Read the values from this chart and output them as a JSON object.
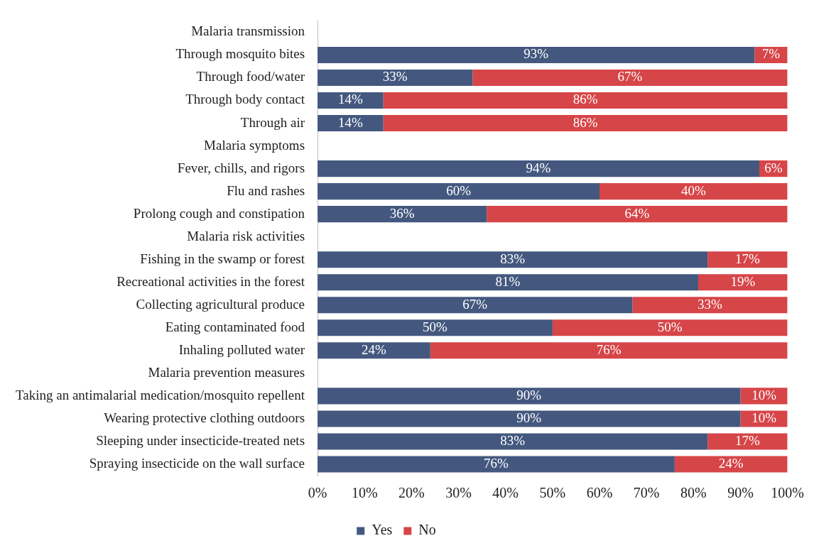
{
  "chart_data": {
    "type": "bar",
    "orientation": "horizontal",
    "stacked": true,
    "categories": [
      "Malaria transmission",
      "Through mosquito bites",
      "Through food/water",
      "Through body contact",
      "Through air",
      "Malaria symptoms",
      "Fever, chills, and rigors",
      "Flu and rashes",
      "Prolong cough and constipation",
      "Malaria risk activities",
      "Fishing in the swamp or forest",
      "Recreational activities in the forest",
      "Collecting agricultural produce",
      "Eating contaminated food",
      "Inhaling polluted water",
      "Malaria prevention measures",
      "Taking an antimalarial medication/mosquito repellent",
      "Wearing protective clothing outdoors",
      "Sleeping under insecticide-treated nets",
      "Spraying insecticide on the wall surface"
    ],
    "series": [
      {
        "name": "Yes",
        "color": "#44587f",
        "values": [
          null,
          93,
          33,
          14,
          14,
          null,
          94,
          60,
          36,
          null,
          83,
          81,
          67,
          50,
          24,
          null,
          90,
          90,
          83,
          76
        ],
        "value_labels": [
          null,
          "93%",
          "33%",
          "14%",
          "14%",
          null,
          "94%",
          "60%",
          "36%",
          null,
          "83%",
          "81%",
          "67%",
          "50%",
          "24%",
          null,
          "90%",
          "90%",
          "83%",
          "76%"
        ]
      },
      {
        "name": "No",
        "color": "#d64548",
        "values": [
          null,
          7,
          67,
          86,
          86,
          null,
          6,
          40,
          64,
          null,
          17,
          19,
          33,
          50,
          76,
          null,
          10,
          10,
          17,
          24
        ],
        "value_labels": [
          null,
          "7%",
          "67%",
          "86%",
          "86%",
          null,
          "6%",
          "40%",
          "64%",
          null,
          "17%",
          "19%",
          "33%",
          "50%",
          "76%",
          null,
          "10%",
          "10%",
          "17%",
          "24%"
        ]
      }
    ],
    "xlim": [
      0,
      100
    ],
    "xticks": [
      {
        "value": 0,
        "label": "0%"
      },
      {
        "value": 10,
        "label": "10%"
      },
      {
        "value": 20,
        "label": "20%"
      },
      {
        "value": 30,
        "label": "30%"
      },
      {
        "value": 40,
        "label": "40%"
      },
      {
        "value": 50,
        "label": "50%"
      },
      {
        "value": 60,
        "label": "60%"
      },
      {
        "value": 70,
        "label": "70%"
      },
      {
        "value": 80,
        "label": "80%"
      },
      {
        "value": 90,
        "label": "90%"
      },
      {
        "value": 100,
        "label": "100%"
      }
    ],
    "grid": false,
    "legend": "bottom"
  }
}
